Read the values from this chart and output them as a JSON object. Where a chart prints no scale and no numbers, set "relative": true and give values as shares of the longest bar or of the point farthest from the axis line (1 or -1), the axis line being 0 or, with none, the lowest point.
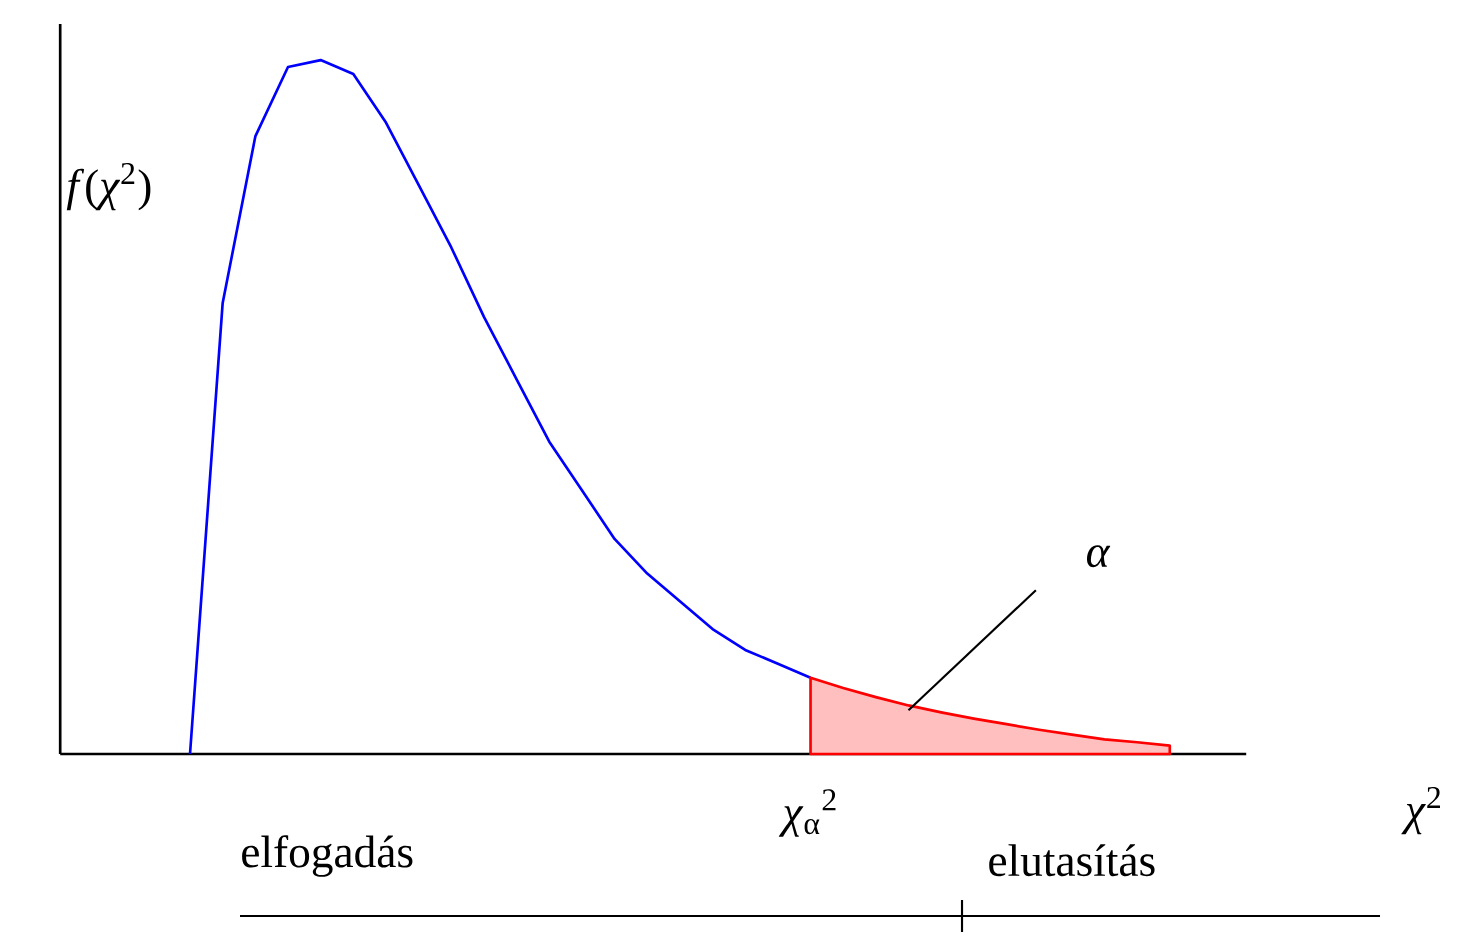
{
  "chart_data": {
    "type": "line",
    "relative": true,
    "ylabel": "*f*(*χ*$^{2}$)",
    "xlabel": "*χ*$^{2}$",
    "categories": [
      null,
      null,
      null,
      null,
      null,
      null,
      null,
      null,
      null,
      null,
      null,
      null,
      null,
      null,
      null,
      null,
      null,
      null,
      null,
      null,
      null,
      null,
      null,
      null,
      null,
      null,
      null,
      null,
      null,
      null,
      null
    ],
    "series": [
      {
        "color": "#0000ff",
        "values": [
          0,
          0.65,
          0.89,
          0.99,
          1.0,
          0.98,
          0.91,
          0.82,
          0.73,
          0.63,
          0.54,
          0.45,
          0.38,
          0.31,
          0.26,
          0.22,
          0.18,
          0.15,
          0.13,
          0.11,
          null,
          null,
          null,
          null,
          null,
          null,
          null,
          null,
          null,
          null,
          null
        ]
      },
      {
        "type": "area",
        "color": "#ff0000",
        "values": [
          null,
          null,
          null,
          null,
          null,
          null,
          null,
          null,
          null,
          null,
          null,
          null,
          null,
          null,
          null,
          null,
          null,
          null,
          null,
          0.11,
          0.095,
          0.082,
          0.07,
          0.06,
          0.051,
          0.043,
          0.035,
          0.028,
          0.021,
          0.017,
          0.012
        ]
      }
    ],
    "annotations": [
      "elfogadás",
      "*χ*$_{α}$$^{2}$",
      "elutasítás",
      "*α*"
    ]
  }
}
